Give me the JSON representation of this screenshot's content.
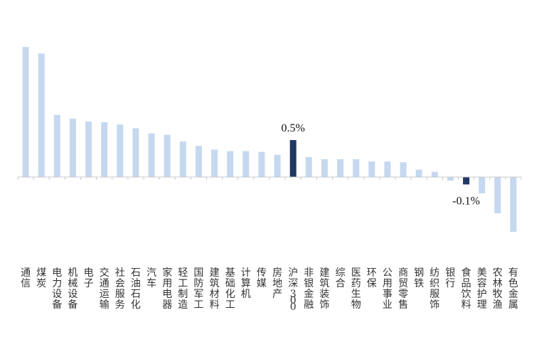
{
  "chart_data": {
    "type": "bar",
    "categories": [
      "通信",
      "煤炭",
      "电力设备",
      "机械设备",
      "电子",
      "交通运输",
      "社会服务",
      "石油石化",
      "汽车",
      "家用电器",
      "轻工制造",
      "国防军工",
      "建筑材料",
      "基础化工",
      "计算机",
      "传媒",
      "房地产",
      "沪深300",
      "非银金融",
      "建筑装饰",
      "综合",
      "医药生物",
      "环保",
      "公用事业",
      "商贸零售",
      "钢铁",
      "纺织服饰",
      "银行",
      "食品饮料",
      "美容护理",
      "农林牧渔",
      "有色金属"
    ],
    "values": [
      1.76,
      1.67,
      0.84,
      0.79,
      0.75,
      0.74,
      0.71,
      0.66,
      0.59,
      0.57,
      0.48,
      0.42,
      0.37,
      0.35,
      0.35,
      0.34,
      0.3,
      0.5,
      0.27,
      0.24,
      0.24,
      0.24,
      0.21,
      0.21,
      0.2,
      0.1,
      0.07,
      -0.05,
      -0.1,
      -0.22,
      -0.49,
      -0.74
    ],
    "highlight": [
      "沪深300",
      "食品饮料"
    ],
    "data_labels": [
      {
        "category": "沪深300",
        "text": "0.5%"
      },
      {
        "category": "食品饮料",
        "text": "-0.1%"
      }
    ],
    "ylim": [
      -1.0,
      2.0
    ],
    "grid": false,
    "legend": "none",
    "colors": {
      "default": "#c5d8ef",
      "highlight": "#1f3864",
      "axis": "#c8c8c8"
    }
  }
}
